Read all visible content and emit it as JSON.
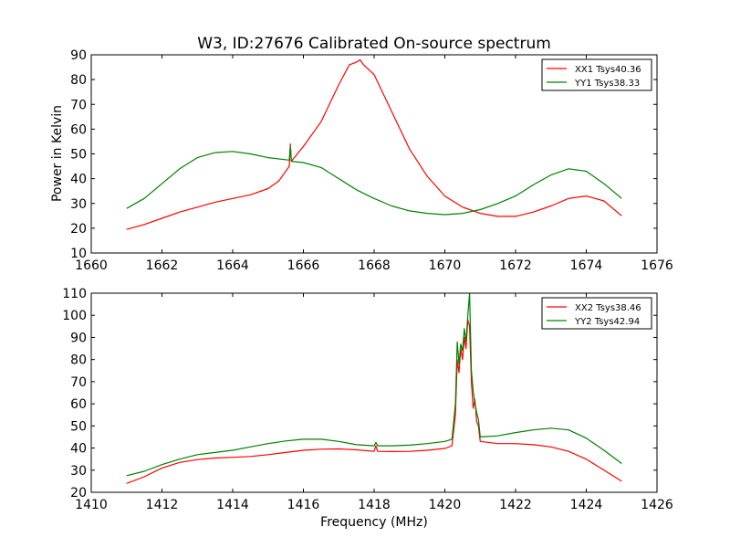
{
  "chart_data": [
    {
      "type": "line",
      "title": "W3, ID:27676 Calibrated On-source spectrum",
      "xlabel": "",
      "ylabel": "Power in Kelvin",
      "xlim": [
        1660,
        1676
      ],
      "ylim": [
        10,
        90
      ],
      "xticks": [
        1660,
        1662,
        1664,
        1666,
        1668,
        1670,
        1672,
        1674,
        1676
      ],
      "yticks": [
        10,
        20,
        30,
        40,
        50,
        60,
        70,
        80,
        90
      ],
      "legend_position": "top-right",
      "series": [
        {
          "name": "XX1 Tsys40.36",
          "color": "#ff0000",
          "points": [
            [
              1661,
              19.5
            ],
            [
              1661.5,
              21.5
            ],
            [
              1662,
              24
            ],
            [
              1662.5,
              26.5
            ],
            [
              1663,
              28.5
            ],
            [
              1663.5,
              30.5
            ],
            [
              1664,
              32
            ],
            [
              1664.5,
              33.5
            ],
            [
              1665,
              36
            ],
            [
              1665.3,
              39
            ],
            [
              1665.6,
              45
            ],
            [
              1665.63,
              54
            ],
            [
              1665.66,
              47
            ],
            [
              1666,
              53
            ],
            [
              1666.5,
              63
            ],
            [
              1667,
              78
            ],
            [
              1667.3,
              86
            ],
            [
              1667.5,
              87
            ],
            [
              1667.6,
              88
            ],
            [
              1667.7,
              86
            ],
            [
              1668,
              82
            ],
            [
              1668.5,
              67
            ],
            [
              1669,
              52
            ],
            [
              1669.5,
              41
            ],
            [
              1670,
              33
            ],
            [
              1670.5,
              28.5
            ],
            [
              1671,
              26
            ],
            [
              1671.5,
              24.8
            ],
            [
              1672,
              24.8
            ],
            [
              1672.5,
              26.5
            ],
            [
              1673,
              29
            ],
            [
              1673.5,
              32
            ],
            [
              1674,
              33
            ],
            [
              1674.5,
              31
            ],
            [
              1675,
              25
            ]
          ]
        },
        {
          "name": "YY1 Tsys38.33",
          "color": "#008000",
          "points": [
            [
              1661,
              28
            ],
            [
              1661.5,
              32
            ],
            [
              1662,
              38
            ],
            [
              1662.5,
              44
            ],
            [
              1663,
              48.5
            ],
            [
              1663.5,
              50.5
            ],
            [
              1664,
              51
            ],
            [
              1664.5,
              50
            ],
            [
              1665,
              48.5
            ],
            [
              1665.6,
              47.5
            ],
            [
              1665.63,
              53
            ],
            [
              1665.66,
              47
            ],
            [
              1666,
              46.5
            ],
            [
              1666.5,
              44.5
            ],
            [
              1667,
              40
            ],
            [
              1667.5,
              35.5
            ],
            [
              1668,
              32
            ],
            [
              1668.5,
              29
            ],
            [
              1669,
              27
            ],
            [
              1669.5,
              26
            ],
            [
              1670,
              25.5
            ],
            [
              1670.5,
              26
            ],
            [
              1671,
              27.5
            ],
            [
              1671.5,
              30
            ],
            [
              1672,
              33
            ],
            [
              1672.5,
              37.5
            ],
            [
              1673,
              41.5
            ],
            [
              1673.5,
              44
            ],
            [
              1674,
              43
            ],
            [
              1674.5,
              38
            ],
            [
              1675,
              32
            ]
          ]
        }
      ]
    },
    {
      "type": "line",
      "title": "",
      "xlabel": "Frequency (MHz)",
      "ylabel": "",
      "xlim": [
        1410,
        1426
      ],
      "ylim": [
        20,
        110
      ],
      "xticks": [
        1410,
        1412,
        1414,
        1416,
        1418,
        1420,
        1422,
        1424,
        1426
      ],
      "yticks": [
        20,
        30,
        40,
        50,
        60,
        70,
        80,
        90,
        100,
        110
      ],
      "legend_position": "top-right",
      "series": [
        {
          "name": "XX2 Tsys38.46",
          "color": "#ff0000",
          "points": [
            [
              1411,
              24
            ],
            [
              1411.5,
              27
            ],
            [
              1412,
              31
            ],
            [
              1412.5,
              33.5
            ],
            [
              1413,
              34.8
            ],
            [
              1413.5,
              35.5
            ],
            [
              1414,
              35.8
            ],
            [
              1414.5,
              36.2
            ],
            [
              1415,
              37
            ],
            [
              1415.5,
              38
            ],
            [
              1416,
              39
            ],
            [
              1416.5,
              39.5
            ],
            [
              1417,
              39.6
            ],
            [
              1417.5,
              39.2
            ],
            [
              1418,
              38.5
            ],
            [
              1418.05,
              41
            ],
            [
              1418.1,
              38.5
            ],
            [
              1418.5,
              38.4
            ],
            [
              1419,
              38.5
            ],
            [
              1419.5,
              39
            ],
            [
              1420,
              39.8
            ],
            [
              1420.2,
              41
            ],
            [
              1420.3,
              55
            ],
            [
              1420.35,
              80
            ],
            [
              1420.4,
              74
            ],
            [
              1420.45,
              85
            ],
            [
              1420.5,
              80
            ],
            [
              1420.55,
              90
            ],
            [
              1420.6,
              85
            ],
            [
              1420.65,
              98
            ],
            [
              1420.7,
              95
            ],
            [
              1420.75,
              70
            ],
            [
              1420.8,
              58
            ],
            [
              1420.85,
              62
            ],
            [
              1420.9,
              52
            ],
            [
              1420.95,
              50
            ],
            [
              1421,
              43
            ],
            [
              1421.5,
              42
            ],
            [
              1422,
              42
            ],
            [
              1422.5,
              41.5
            ],
            [
              1423,
              40.5
            ],
            [
              1423.5,
              38.5
            ],
            [
              1424,
              35
            ],
            [
              1424.5,
              30
            ],
            [
              1425,
              25
            ]
          ]
        },
        {
          "name": "YY2 Tsys42.94",
          "color": "#008000",
          "points": [
            [
              1411,
              27.5
            ],
            [
              1411.5,
              29.5
            ],
            [
              1412,
              32.5
            ],
            [
              1412.5,
              35
            ],
            [
              1413,
              37
            ],
            [
              1413.5,
              38
            ],
            [
              1414,
              39
            ],
            [
              1414.5,
              40.5
            ],
            [
              1415,
              42
            ],
            [
              1415.5,
              43.2
            ],
            [
              1416,
              44
            ],
            [
              1416.5,
              44
            ],
            [
              1417,
              43
            ],
            [
              1417.5,
              41.5
            ],
            [
              1418,
              41
            ],
            [
              1418.05,
              42.5
            ],
            [
              1418.1,
              41
            ],
            [
              1418.5,
              41
            ],
            [
              1419,
              41.3
            ],
            [
              1419.5,
              42
            ],
            [
              1420,
              43
            ],
            [
              1420.2,
              44
            ],
            [
              1420.3,
              60
            ],
            [
              1420.35,
              88
            ],
            [
              1420.4,
              78
            ],
            [
              1420.45,
              87
            ],
            [
              1420.5,
              84
            ],
            [
              1420.55,
              94
            ],
            [
              1420.6,
              88
            ],
            [
              1420.65,
              100
            ],
            [
              1420.7,
              110
            ],
            [
              1420.75,
              75
            ],
            [
              1420.8,
              66
            ],
            [
              1420.85,
              60
            ],
            [
              1420.9,
              56
            ],
            [
              1420.95,
              53
            ],
            [
              1421,
              45
            ],
            [
              1421.5,
              45.5
            ],
            [
              1422,
              47
            ],
            [
              1422.5,
              48.2
            ],
            [
              1423,
              49
            ],
            [
              1423.5,
              48.2
            ],
            [
              1424,
              44.5
            ],
            [
              1424.5,
              39
            ],
            [
              1425,
              33
            ]
          ]
        }
      ]
    }
  ]
}
